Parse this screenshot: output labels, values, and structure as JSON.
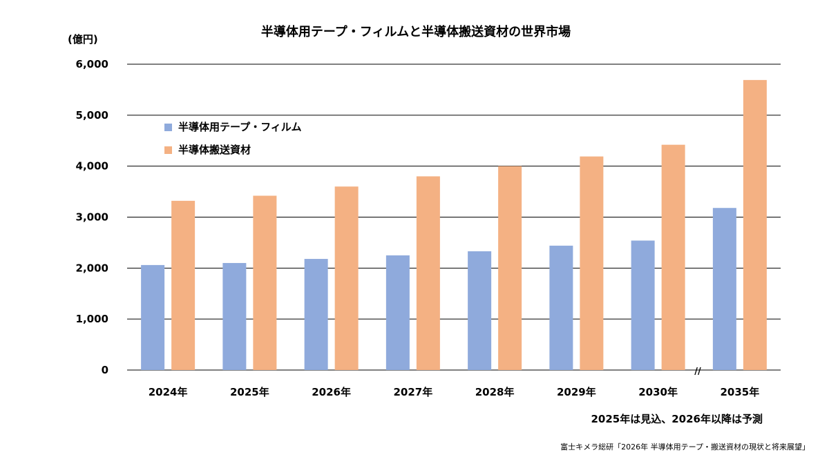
{
  "chart_data": {
    "type": "bar",
    "title": "半導体用テープ・フィルムと半導体搬送資材の世界市場",
    "unit_label": "(億円)",
    "categories": [
      "2024年",
      "2025年",
      "2026年",
      "2027年",
      "2028年",
      "2029年",
      "2030年",
      "2035年"
    ],
    "series": [
      {
        "name": "半導体用テープ・フィルム",
        "color": "#8faadc",
        "values": [
          2060,
          2100,
          2180,
          2250,
          2330,
          2440,
          2540,
          3180
        ]
      },
      {
        "name": "半導体搬送資材",
        "color": "#f4b183",
        "values": [
          3320,
          3420,
          3600,
          3800,
          4000,
          4190,
          4420,
          5690
        ]
      }
    ],
    "ylim": [
      0,
      6000
    ],
    "yticks": [
      "0",
      "1,000",
      "2,000",
      "3,000",
      "4,000",
      "5,000",
      "6,000"
    ],
    "grid": true,
    "legend_position": "top-left",
    "axis_break_marker": "//",
    "note": "2025年は見込、2026年以降は予測",
    "source": "富士キメラ総研「2026年 半導体用テープ・搬送資材の現状と将来展望」"
  }
}
